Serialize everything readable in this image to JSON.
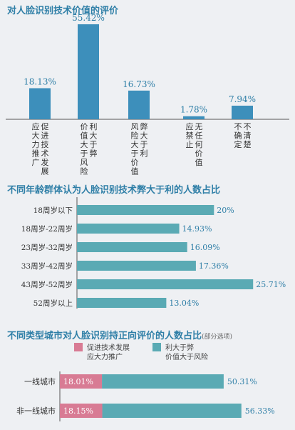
{
  "titles": {
    "t1": "对人脸识别技术价值的评价",
    "t2": "不同年龄群体认为人脸识别技术弊大于利的人数占比",
    "t3": "不同类型城市对人脸识别持正向评价的人数占比",
    "t3_sub": "(部分选项)"
  },
  "colors": {
    "bar": "#3d8fbb",
    "teal": "#5aaab4",
    "pink": "#d87b94",
    "title": "#2f7fa7"
  },
  "chart_data": [
    {
      "type": "bar",
      "title": "对人脸识别技术价值的评价",
      "categories": [
        [
          "促进技术发展",
          "应大力推广"
        ],
        [
          "利大于弊",
          "价值大于风险"
        ],
        [
          "弊大于利",
          "风险大于价值"
        ],
        [
          "无任何价值",
          "应禁止"
        ],
        [
          "不清楚",
          "不确定"
        ]
      ],
      "values": [
        18.13,
        55.42,
        16.73,
        1.78,
        7.94
      ],
      "value_labels": [
        "18.13%",
        "55.42%",
        "16.73%",
        "1.78%",
        "7.94%"
      ],
      "ylim": [
        0,
        60
      ]
    },
    {
      "type": "bar",
      "orientation": "horizontal",
      "title": "不同年龄群体认为人脸识别技术弊大于利的人数占比",
      "categories": [
        "18周岁以下",
        "18周岁-22周岁",
        "23周岁-32周岁",
        "33周岁-42周岁",
        "43周岁-52周岁",
        "52周岁以上"
      ],
      "values": [
        20,
        14.93,
        16.09,
        17.36,
        25.71,
        13.04
      ],
      "value_labels": [
        "20%",
        "14.93%",
        "16.09%",
        "17.36%",
        "25.71%",
        "13.04%"
      ],
      "xlim": [
        0,
        26
      ]
    },
    {
      "type": "bar",
      "orientation": "horizontal",
      "title": "不同类型城市对人脸识别持正向评价的人数占比",
      "legend": [
        [
          "促进技术发展",
          "应大力推广"
        ],
        [
          "利大于弊",
          "价值大于风险"
        ]
      ],
      "categories": [
        "一线城市",
        "非一线城市"
      ],
      "series": [
        {
          "values": [
            18.01,
            18.15
          ],
          "value_labels": [
            "18.01%",
            "18.15%"
          ]
        },
        {
          "values": [
            50.31,
            56.33
          ],
          "value_labels": [
            "50.31%",
            "56.33%"
          ]
        }
      ],
      "xlim": [
        0,
        60
      ]
    }
  ]
}
